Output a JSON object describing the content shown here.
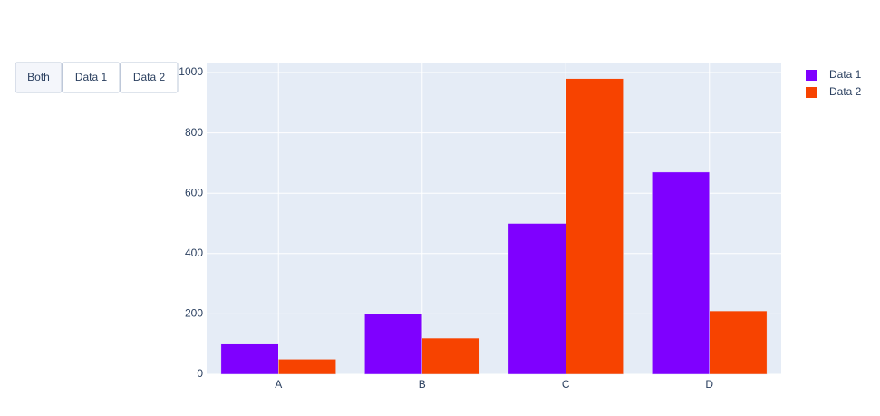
{
  "chart_data": {
    "type": "bar",
    "categories": [
      "A",
      "B",
      "C",
      "D"
    ],
    "series": [
      {
        "name": "Data 1",
        "color": "#7f00ff",
        "values": [
          100,
          200,
          500,
          670
        ]
      },
      {
        "name": "Data 2",
        "color": "#f74300",
        "values": [
          50,
          120,
          980,
          210
        ]
      }
    ],
    "ylim": [
      0,
      1030
    ],
    "yticks": [
      0,
      200,
      400,
      600,
      800,
      1000
    ],
    "grid": true,
    "legend": "top-right"
  },
  "menu": {
    "buttons": [
      "Both",
      "Data 1",
      "Data 2"
    ],
    "active": 0
  }
}
